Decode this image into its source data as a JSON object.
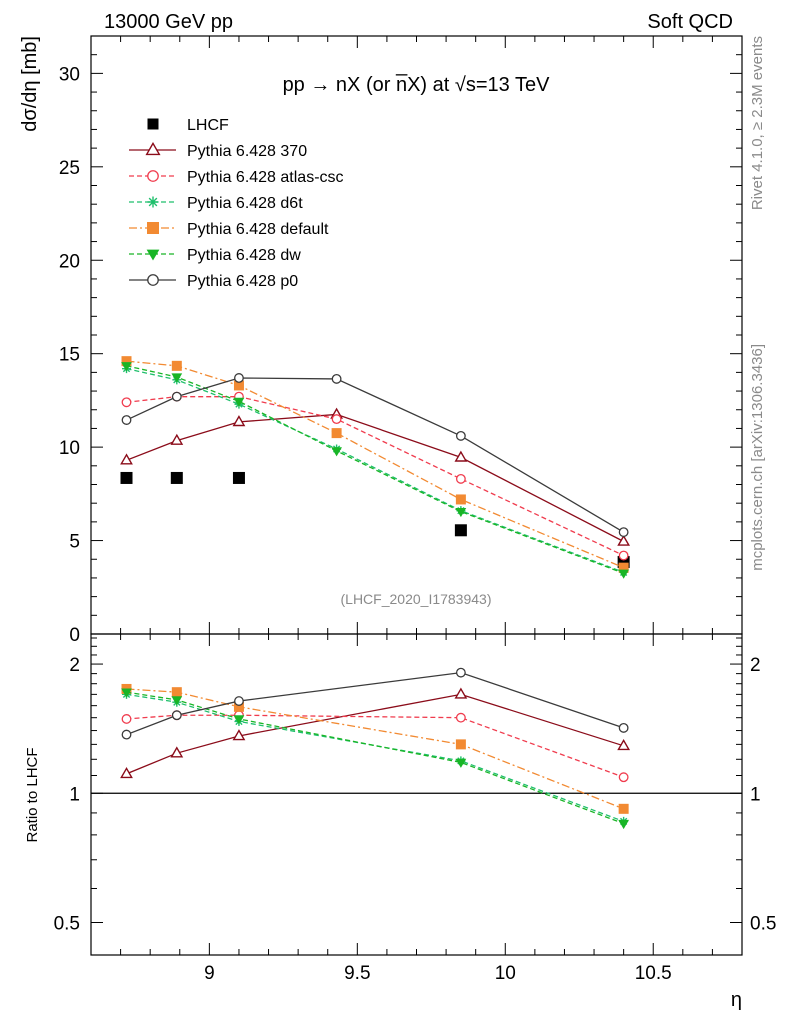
{
  "header": {
    "left": "13000 GeV pp",
    "right": "Soft QCD"
  },
  "side_texts": {
    "rivet": "Rivet 4.1.0, ≥ 2.3M events",
    "mcplots": "mcplots.cern.ch [arXiv:1306.3436]"
  },
  "chart_data": {
    "type": "line",
    "title": "pp → nX (or n̅X) at √s=13 TeV",
    "analysis_label": "(LHCF_2020_I1783943)",
    "xlabel": "η",
    "ylabel": "dσ/dη [mb]",
    "ratio_ylabel": "Ratio to LHCF",
    "xlim": [
      8.6,
      10.8
    ],
    "ylim": [
      0,
      32
    ],
    "ratio_ylim": [
      0.42,
      2.35
    ],
    "x_ticks": [
      9,
      9.5,
      10,
      10.5
    ],
    "x_tick_labels": [
      "9",
      "9.5",
      "10",
      "10.5"
    ],
    "y_ticks": [
      0,
      5,
      10,
      15,
      20,
      25,
      30
    ],
    "y_tick_labels": [
      "0",
      "5",
      "10",
      "15",
      "20",
      "25",
      "30"
    ],
    "ratio_ticks": [
      0.5,
      1,
      2
    ],
    "ratio_tick_labels": [
      "0.5",
      "1",
      "2"
    ],
    "series": [
      {
        "name": "LHCF",
        "color": "#000000",
        "marker": "square-filled",
        "line": "none",
        "x": [
          8.72,
          8.89,
          9.1,
          9.85,
          10.4
        ],
        "y": [
          8.35,
          8.35,
          8.35,
          5.55,
          3.85
        ]
      },
      {
        "name": "Pythia 6.428 370",
        "color": "#8b0c1a",
        "marker": "triangle-open",
        "line": "solid",
        "x": [
          8.72,
          8.89,
          9.1,
          9.43,
          9.85,
          10.4
        ],
        "y": [
          9.3,
          10.35,
          11.35,
          11.75,
          9.45,
          4.95
        ],
        "ratio_x": [
          8.72,
          8.89,
          9.1,
          9.85,
          10.4
        ],
        "ratio": [
          1.11,
          1.24,
          1.36,
          1.7,
          1.29
        ]
      },
      {
        "name": "Pythia 6.428 atlas-csc",
        "color": "#f03c4e",
        "marker": "circle-open",
        "line": "dashed",
        "x": [
          8.72,
          8.89,
          9.1,
          9.43,
          9.85,
          10.4
        ],
        "y": [
          12.4,
          12.7,
          12.7,
          11.5,
          8.3,
          4.2
        ],
        "ratio_x": [
          8.72,
          8.89,
          9.1,
          9.85,
          10.4
        ],
        "ratio": [
          1.49,
          1.52,
          1.52,
          1.5,
          1.09
        ]
      },
      {
        "name": "Pythia 6.428 d6t",
        "color": "#1fbf6c",
        "marker": "star",
        "line": "dashed",
        "x": [
          8.72,
          8.89,
          9.1,
          9.43,
          9.85,
          10.4
        ],
        "y": [
          14.2,
          13.6,
          12.3,
          9.9,
          6.6,
          3.3
        ],
        "ratio_x": [
          8.72,
          8.89,
          9.1,
          9.85,
          10.4
        ],
        "ratio": [
          1.7,
          1.63,
          1.47,
          1.19,
          0.86
        ]
      },
      {
        "name": "Pythia 6.428 default",
        "color": "#f28a32",
        "marker": "square-filled",
        "line": "dashdot",
        "x": [
          8.72,
          8.89,
          9.1,
          9.43,
          9.85,
          10.4
        ],
        "y": [
          14.6,
          14.35,
          13.3,
          10.75,
          7.2,
          3.55
        ],
        "ratio_x": [
          8.72,
          8.89,
          9.1,
          9.85,
          10.4
        ],
        "ratio": [
          1.75,
          1.72,
          1.59,
          1.3,
          0.92
        ]
      },
      {
        "name": "Pythia 6.428 dw",
        "color": "#19b526",
        "marker": "triangle-down-filled",
        "line": "dashed",
        "x": [
          8.72,
          8.89,
          9.1,
          9.43,
          9.85,
          10.4
        ],
        "y": [
          14.35,
          13.75,
          12.45,
          9.8,
          6.55,
          3.25
        ],
        "ratio_x": [
          8.72,
          8.89,
          9.1,
          9.85,
          10.4
        ],
        "ratio": [
          1.72,
          1.65,
          1.49,
          1.18,
          0.85
        ]
      },
      {
        "name": "Pythia 6.428 p0",
        "color": "#3b3b3b",
        "marker": "circle-open",
        "line": "solid",
        "x": [
          8.72,
          8.89,
          9.1,
          9.43,
          9.85,
          10.4
        ],
        "y": [
          11.45,
          12.7,
          13.7,
          13.65,
          10.6,
          5.45
        ],
        "ratio_x": [
          8.72,
          8.89,
          9.1,
          9.85,
          10.4
        ],
        "ratio": [
          1.37,
          1.52,
          1.64,
          1.91,
          1.42
        ]
      }
    ]
  }
}
